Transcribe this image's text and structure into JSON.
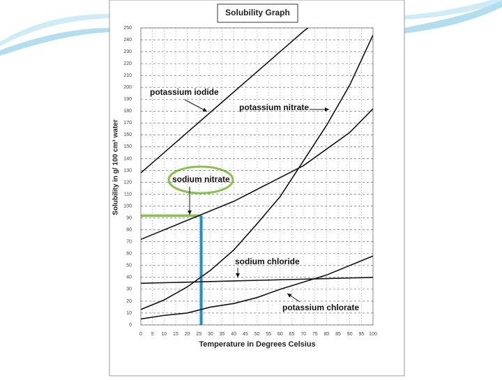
{
  "chart_data": {
    "type": "line",
    "title": "Solubility Graph",
    "x_label": "Temperature in Degrees Celsius",
    "y_label": "Solubility in g/ 100 cm³ water",
    "xlim": [
      0,
      100
    ],
    "ylim": [
      0,
      250
    ],
    "xticks": [
      0,
      5,
      10,
      15,
      20,
      25,
      30,
      35,
      40,
      45,
      50,
      55,
      60,
      65,
      70,
      75,
      80,
      85,
      90,
      95,
      100
    ],
    "yticks": [
      0,
      10,
      20,
      30,
      40,
      50,
      60,
      70,
      80,
      90,
      100,
      110,
      120,
      130,
      140,
      150,
      160,
      170,
      180,
      190,
      200,
      210,
      220,
      230,
      240,
      250
    ],
    "grid": true,
    "series": [
      {
        "name": "potassium iodide",
        "color": "#111111",
        "x": [
          0,
          10,
          20,
          30,
          40,
          50,
          60,
          70,
          72
        ],
        "values": [
          128,
          145,
          162,
          179,
          196,
          213,
          230,
          247,
          250
        ]
      },
      {
        "name": "potassium nitrate",
        "color": "#111111",
        "x": [
          0,
          10,
          20,
          30,
          40,
          50,
          60,
          70,
          80,
          90,
          100
        ],
        "values": [
          13,
          21,
          32,
          46,
          63,
          85,
          108,
          138,
          168,
          202,
          244
        ]
      },
      {
        "name": "sodium nitrate",
        "color": "#111111",
        "x": [
          0,
          10,
          20,
          30,
          40,
          50,
          60,
          70,
          80,
          90,
          100
        ],
        "values": [
          72,
          80,
          88,
          96,
          104,
          114,
          124,
          134,
          148,
          162,
          182
        ]
      },
      {
        "name": "sodium chloride",
        "color": "#111111",
        "x": [
          0,
          20,
          40,
          60,
          80,
          100
        ],
        "values": [
          35,
          36,
          37,
          38,
          39,
          40
        ]
      },
      {
        "name": "potassium chlorate",
        "color": "#111111",
        "x": [
          0,
          10,
          20,
          30,
          40,
          50,
          60,
          70,
          80,
          90,
          100
        ],
        "values": [
          5,
          8,
          10,
          15,
          18,
          23,
          30,
          36,
          42,
          50,
          58
        ]
      }
    ],
    "reference_point": {
      "x": 26,
      "y": 92,
      "x_color": "#1e90c8",
      "y_color": "#8bc34a"
    }
  }
}
